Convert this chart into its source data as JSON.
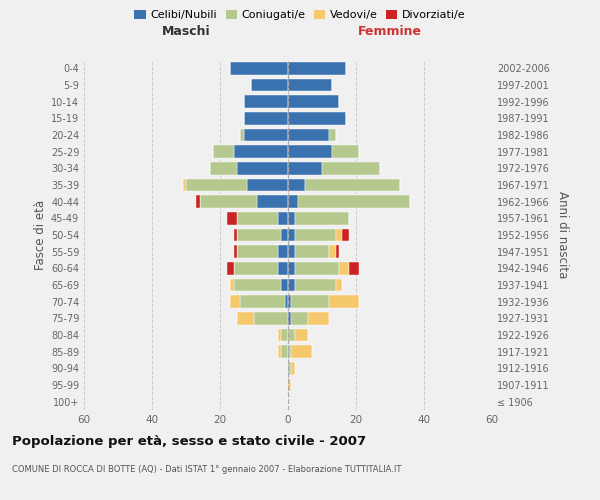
{
  "age_groups": [
    "100+",
    "95-99",
    "90-94",
    "85-89",
    "80-84",
    "75-79",
    "70-74",
    "65-69",
    "60-64",
    "55-59",
    "50-54",
    "45-49",
    "40-44",
    "35-39",
    "30-34",
    "25-29",
    "20-24",
    "15-19",
    "10-14",
    "5-9",
    "0-4"
  ],
  "birth_years": [
    "≤ 1906",
    "1907-1911",
    "1912-1916",
    "1917-1921",
    "1922-1926",
    "1927-1931",
    "1932-1936",
    "1937-1941",
    "1942-1946",
    "1947-1951",
    "1952-1956",
    "1957-1961",
    "1962-1966",
    "1967-1971",
    "1972-1976",
    "1977-1981",
    "1982-1986",
    "1987-1991",
    "1992-1996",
    "1997-2001",
    "2002-2006"
  ],
  "male_celibi": [
    0,
    0,
    0,
    0,
    0,
    0,
    1,
    2,
    3,
    3,
    2,
    3,
    9,
    12,
    15,
    16,
    13,
    13,
    13,
    11,
    17
  ],
  "male_coniugati": [
    0,
    0,
    0,
    2,
    2,
    10,
    13,
    14,
    13,
    12,
    13,
    12,
    17,
    18,
    8,
    6,
    1,
    0,
    0,
    0,
    0
  ],
  "male_vedovi": [
    0,
    0,
    0,
    1,
    1,
    5,
    3,
    1,
    0,
    0,
    0,
    0,
    0,
    1,
    0,
    0,
    0,
    0,
    0,
    0,
    0
  ],
  "male_divorziati": [
    0,
    0,
    0,
    0,
    0,
    0,
    0,
    0,
    2,
    1,
    1,
    3,
    1,
    0,
    0,
    0,
    0,
    0,
    0,
    0,
    0
  ],
  "female_nubili": [
    0,
    0,
    0,
    0,
    0,
    1,
    1,
    2,
    2,
    2,
    2,
    2,
    3,
    5,
    10,
    13,
    12,
    17,
    15,
    13,
    17
  ],
  "female_coniugate": [
    0,
    0,
    1,
    1,
    2,
    5,
    11,
    12,
    13,
    10,
    12,
    16,
    33,
    28,
    17,
    8,
    2,
    0,
    0,
    0,
    0
  ],
  "female_vedove": [
    0,
    1,
    1,
    6,
    4,
    6,
    9,
    2,
    3,
    2,
    2,
    0,
    0,
    0,
    0,
    0,
    0,
    0,
    0,
    0,
    0
  ],
  "female_divorziate": [
    0,
    0,
    0,
    0,
    0,
    0,
    0,
    0,
    3,
    1,
    2,
    0,
    0,
    0,
    0,
    0,
    0,
    0,
    0,
    0,
    0
  ],
  "colors_celibi": "#3a72b0",
  "colors_coniugati": "#b5c98e",
  "colors_vedovi": "#f5c86e",
  "colors_divorziati": "#cc2222",
  "xlim": 60,
  "title": "Popolazione per età, sesso e stato civile - 2007",
  "subtitle": "COMUNE DI ROCCA DI BOTTE (AQ) - Dati ISTAT 1° gennaio 2007 - Elaborazione TUTTITALIA.IT",
  "ylabel": "Fasce di età",
  "ylabel_right": "Anni di nascita",
  "label_maschi": "Maschi",
  "label_femmine": "Femmine",
  "legend_labels": [
    "Celibi/Nubili",
    "Coniugati/e",
    "Vedovi/e",
    "Divorziati/e"
  ],
  "background_color": "#f0f0f0"
}
